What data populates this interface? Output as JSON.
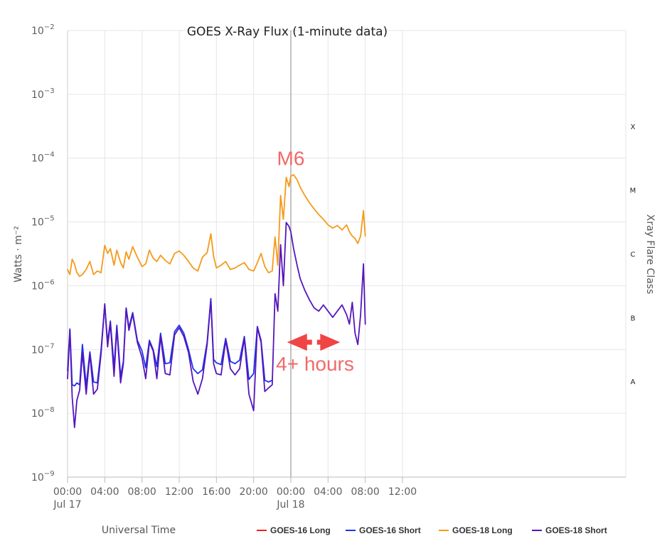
{
  "chart_data": {
    "type": "line",
    "title": "GOES X-Ray Flux (1-minute data)",
    "xlabel": "Universal Time",
    "ylabel": "Watts · m⁻²",
    "y2label": "Xray Flare Class",
    "yscale": "log",
    "ylim": [
      1e-09,
      0.01
    ],
    "xlim": [
      0,
      60
    ],
    "x_unit": "hours since Jul 17 00:00 UT",
    "grid": true,
    "legend_position": "bottom",
    "x_ticks": [
      {
        "x": 0,
        "label": "00:00",
        "date": "Jul 17"
      },
      {
        "x": 4,
        "label": "04:00"
      },
      {
        "x": 8,
        "label": "08:00"
      },
      {
        "x": 12,
        "label": "12:00"
      },
      {
        "x": 16,
        "label": "16:00"
      },
      {
        "x": 20,
        "label": "20:00"
      },
      {
        "x": 24,
        "label": "00:00",
        "date": "Jul 18"
      },
      {
        "x": 28,
        "label": "04:00"
      },
      {
        "x": 32,
        "label": "08:00"
      },
      {
        "x": 36,
        "label": "12:00"
      }
    ],
    "y_ticks": [
      {
        "exp": -9,
        "base": "10",
        "sup": "−9"
      },
      {
        "exp": -8,
        "base": "10",
        "sup": "−8"
      },
      {
        "exp": -7,
        "base": "10",
        "sup": "−7"
      },
      {
        "exp": -6,
        "base": "10",
        "sup": "−6"
      },
      {
        "exp": -5,
        "base": "10",
        "sup": "−5"
      },
      {
        "exp": -4,
        "base": "10",
        "sup": "−4"
      },
      {
        "exp": -3,
        "base": "10",
        "sup": "−3"
      },
      {
        "exp": -2,
        "base": "10",
        "sup": "−2"
      }
    ],
    "flare_classes": [
      {
        "label": "A",
        "exp": -7.5
      },
      {
        "label": "B",
        "exp": -6.5
      },
      {
        "label": "C",
        "exp": -5.5
      },
      {
        "label": "M",
        "exp": -4.5
      },
      {
        "label": "X",
        "exp": -3.5
      }
    ],
    "vertical_marker_x": 24,
    "annotations": [
      {
        "text": "M6",
        "x": 24,
        "y": 0.0001,
        "color": "#f06a6a"
      },
      {
        "text": "4+ hours",
        "x": 26.6,
        "y": 6e-08,
        "color": "#f06a6a"
      }
    ],
    "arrow": {
      "x_start": 23.6,
      "x_end": 29.3,
      "y": 1.3e-07,
      "color": "#f04545"
    },
    "legend": [
      {
        "name": "GOES-16 Long",
        "color": "#ee2222"
      },
      {
        "name": "GOES-16 Short",
        "color": "#1a33ee"
      },
      {
        "name": "GOES-18 Long",
        "color": "#f59a1a"
      },
      {
        "name": "GOES-18 Short",
        "color": "#5516bb"
      }
    ],
    "series": [
      {
        "name": "GOES-16 Long",
        "color": "#ee2222",
        "x": [],
        "y": []
      },
      {
        "name": "GOES-18 Long",
        "color": "#f59a1a",
        "x": [
          0,
          0.25,
          0.5,
          0.75,
          1,
          1.3,
          1.6,
          2,
          2.4,
          2.8,
          3.2,
          3.6,
          4,
          4.3,
          4.6,
          5,
          5.3,
          5.7,
          6,
          6.3,
          6.6,
          7,
          7.5,
          8,
          8.4,
          8.8,
          9.2,
          9.6,
          10,
          10.5,
          11,
          11.5,
          12,
          12.5,
          13,
          13.5,
          14,
          14.5,
          15,
          15.4,
          15.7,
          16,
          16.5,
          17,
          17.5,
          18,
          18.5,
          19,
          19.5,
          20,
          20.4,
          20.8,
          21.2,
          21.6,
          22,
          22.3,
          22.6,
          22.9,
          23.2,
          23.5,
          23.8,
          24,
          24.3,
          24.7,
          25,
          25.5,
          26,
          26.5,
          27,
          27.5,
          28,
          28.5,
          29,
          29.5,
          30,
          30.3,
          30.6,
          30.9,
          31.2,
          31.5,
          31.8,
          32
        ],
        "y": [
          1.8e-06,
          1.5e-06,
          2.6e-06,
          2.2e-06,
          1.6e-06,
          1.4e-06,
          1.5e-06,
          1.8e-06,
          2.4e-06,
          1.5e-06,
          1.7e-06,
          1.6e-06,
          4.3e-06,
          3.2e-06,
          3.8e-06,
          2.1e-06,
          3.6e-06,
          2.3e-06,
          1.9e-06,
          3.4e-06,
          2.6e-06,
          4.1e-06,
          2.8e-06,
          2e-06,
          2.2e-06,
          3.6e-06,
          2.7e-06,
          2.4e-06,
          3e-06,
          2.5e-06,
          2.2e-06,
          3.2e-06,
          3.5e-06,
          3e-06,
          2.4e-06,
          1.9e-06,
          1.7e-06,
          2.8e-06,
          3.3e-06,
          6.5e-06,
          2.9e-06,
          1.9e-06,
          2.1e-06,
          2.4e-06,
          1.8e-06,
          1.9e-06,
          2.1e-06,
          2.3e-06,
          1.8e-06,
          1.7e-06,
          2.3e-06,
          3.2e-06,
          2e-06,
          1.6e-06,
          1.7e-06,
          5.8e-06,
          2.1e-06,
          2.6e-05,
          1.1e-05,
          5e-05,
          3.6e-05,
          5.2e-05,
          5.5e-05,
          4.5e-05,
          3.5e-05,
          2.6e-05,
          2e-05,
          1.6e-05,
          1.3e-05,
          1.1e-05,
          9e-06,
          8e-06,
          8.8e-06,
          7.5e-06,
          9e-06,
          7e-06,
          6e-06,
          5.5e-06,
          4.6e-06,
          6e-06,
          1.5e-05,
          6e-06
        ]
      },
      {
        "name": "GOES-16 Short",
        "color": "#1a33ee",
        "x": [
          0,
          0.25,
          0.5,
          0.75,
          1,
          1.3,
          1.6,
          2,
          2.4,
          2.8,
          3.2,
          3.6,
          4,
          4.3,
          4.6,
          5,
          5.3,
          5.7,
          6,
          6.3,
          6.6,
          7,
          7.5,
          8,
          8.4,
          8.8,
          9.2,
          9.6,
          10,
          10.5,
          11,
          11.5,
          12,
          12.5,
          13,
          13.5,
          14,
          14.5,
          15,
          15.4,
          15.7,
          16,
          16.5,
          17,
          17.5,
          18,
          18.5,
          19,
          19.5,
          20,
          20.4,
          20.8,
          21.2,
          21.6,
          22
        ],
        "y": [
          4.7e-08,
          2.1e-07,
          2.8e-08,
          2.7e-08,
          3e-08,
          2.8e-08,
          1.2e-07,
          2.7e-08,
          9.2e-08,
          3.1e-08,
          3e-08,
          9.8e-08,
          5e-07,
          1.3e-07,
          2.8e-07,
          5.3e-08,
          2.4e-07,
          3.8e-08,
          6.5e-08,
          4.5e-07,
          2.2e-07,
          3.8e-07,
          1.4e-07,
          9.5e-08,
          5.2e-08,
          1.4e-07,
          1e-07,
          5.4e-08,
          1.8e-07,
          6e-08,
          6.2e-08,
          1.9e-07,
          2.4e-07,
          1.8e-07,
          1e-07,
          5e-08,
          4.2e-08,
          4.8e-08,
          1.3e-07,
          6.3e-07,
          7e-08,
          6.2e-08,
          5.8e-08,
          1.5e-07,
          6.5e-08,
          6e-08,
          6.8e-08,
          1.6e-07,
          3.4e-08,
          4.2e-08,
          2.3e-07,
          1.4e-07,
          3.3e-08,
          3.1e-08,
          3.3e-08
        ]
      },
      {
        "name": "GOES-18 Short",
        "color": "#5516bb",
        "x": [
          0,
          0.25,
          0.5,
          0.75,
          1,
          1.3,
          1.6,
          2,
          2.4,
          2.8,
          3.2,
          3.6,
          4,
          4.3,
          4.6,
          5,
          5.3,
          5.7,
          6,
          6.3,
          6.6,
          7,
          7.5,
          8,
          8.4,
          8.8,
          9.2,
          9.6,
          10,
          10.5,
          11,
          11.5,
          12,
          12.5,
          13,
          13.5,
          14,
          14.5,
          15,
          15.4,
          15.7,
          16,
          16.5,
          17,
          17.5,
          18,
          18.5,
          19,
          19.5,
          20,
          20.4,
          20.8,
          21.2,
          21.6,
          22,
          22.3,
          22.6,
          22.9,
          23.2,
          23.5,
          23.8,
          24,
          24.3,
          24.7,
          25,
          25.5,
          26,
          26.5,
          27,
          27.5,
          28,
          28.5,
          29,
          29.5,
          30,
          30.3,
          30.6,
          30.9,
          31.2,
          31.5,
          31.8,
          32
        ],
        "y": [
          3.5e-08,
          2e-07,
          1.8e-08,
          6e-09,
          1.6e-08,
          2.3e-08,
          9e-08,
          2e-08,
          8.5e-08,
          2e-08,
          2.4e-08,
          8.5e-08,
          5.2e-07,
          1.1e-07,
          2.6e-07,
          3.8e-08,
          2.2e-07,
          3e-08,
          6e-08,
          4.4e-07,
          2e-07,
          3.6e-07,
          1.3e-07,
          7.5e-08,
          3.5e-08,
          1.3e-07,
          9.5e-08,
          3.5e-08,
          1.6e-07,
          4.2e-08,
          4e-08,
          1.7e-07,
          2.2e-07,
          1.6e-07,
          9e-08,
          3.2e-08,
          2e-08,
          3.5e-08,
          1.2e-07,
          6e-07,
          6e-08,
          4.2e-08,
          4e-08,
          1.4e-07,
          5e-08,
          4e-08,
          5e-08,
          1.5e-07,
          2e-08,
          1.1e-08,
          2.2e-07,
          1.3e-07,
          2.2e-08,
          2.5e-08,
          2.8e-08,
          7.5e-07,
          4e-07,
          4.4e-06,
          1e-06,
          9.8e-06,
          8.5e-06,
          7e-06,
          3.8e-06,
          2e-06,
          1.3e-06,
          8.5e-07,
          6e-07,
          4.5e-07,
          4e-07,
          5e-07,
          4e-07,
          3.2e-07,
          4e-07,
          5e-07,
          3.5e-07,
          2.5e-07,
          5.5e-07,
          1.8e-07,
          1.2e-07,
          3.5e-07,
          2.2e-06,
          2.5e-07
        ]
      }
    ]
  }
}
